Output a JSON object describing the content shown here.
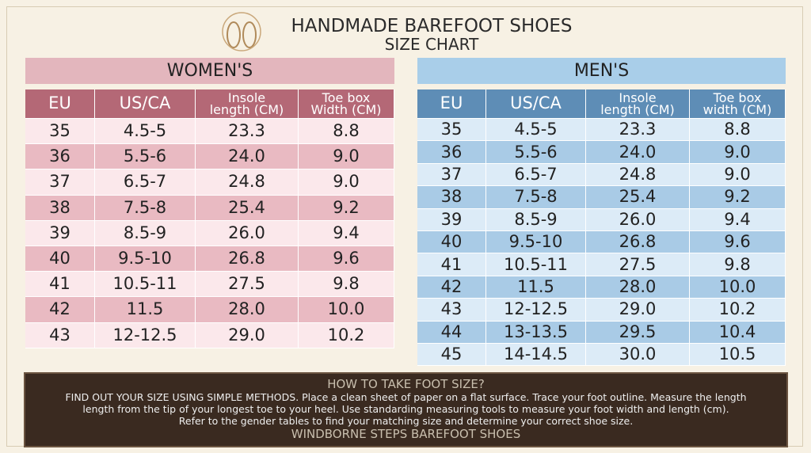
{
  "header": {
    "title": "HANDMADE BAREFOOT SHOES",
    "subtitle": "SIZE CHART"
  },
  "women": {
    "title": "WOMEN'S",
    "columns": [
      [
        "EU"
      ],
      [
        "US/CA"
      ],
      [
        "Insole",
        "length (CM)"
      ],
      [
        "Toe box",
        "Width (CM)"
      ]
    ],
    "rows": [
      [
        "35",
        "4.5-5",
        "23.3",
        "8.8"
      ],
      [
        "36",
        "5.5-6",
        "24.0",
        "9.0"
      ],
      [
        "37",
        "6.5-7",
        "24.8",
        "9.0"
      ],
      [
        "38",
        "7.5-8",
        "25.4",
        "9.2"
      ],
      [
        "39",
        "8.5-9",
        "26.0",
        "9.4"
      ],
      [
        "40",
        "9.5-10",
        "26.8",
        "9.6"
      ],
      [
        "41",
        "10.5-11",
        "27.5",
        "9.8"
      ],
      [
        "42",
        "11.5",
        "28.0",
        "10.0"
      ],
      [
        "43",
        "12-12.5",
        "29.0",
        "10.2"
      ]
    ]
  },
  "men": {
    "title": "MEN'S",
    "columns": [
      [
        "EU"
      ],
      [
        "US/CA"
      ],
      [
        "Insole",
        "length (CM)"
      ],
      [
        "Toe box",
        "width (CM)"
      ]
    ],
    "rows": [
      [
        "35",
        "4.5-5",
        "23.3",
        "8.8"
      ],
      [
        "36",
        "5.5-6",
        "24.0",
        "9.0"
      ],
      [
        "37",
        "6.5-7",
        "24.8",
        "9.0"
      ],
      [
        "38",
        "7.5-8",
        "25.4",
        "9.2"
      ],
      [
        "39",
        "8.5-9",
        "26.0",
        "9.4"
      ],
      [
        "40",
        "9.5-10",
        "26.8",
        "9.6"
      ],
      [
        "41",
        "10.5-11",
        "27.5",
        "9.8"
      ],
      [
        "42",
        "11.5",
        "28.0",
        "10.0"
      ],
      [
        "43",
        "12-12.5",
        "29.0",
        "10.2"
      ],
      [
        "44",
        "13-13.5",
        "29.5",
        "10.4"
      ],
      [
        "45",
        "14-14.5",
        "30.0",
        "10.5"
      ]
    ]
  },
  "footer": {
    "heading": "HOW TO TAKE FOOT SIZE?",
    "lines": [
      "FIND OUT YOUR SIZE USING SIMPLE METHODS. Place a clean sheet of paper on a flat surface. Trace your foot outline. Measure the length",
      "length from the tip of your longest toe to your heel. Use standarding measuring tools to measure your foot width and length (cm).",
      "Refer to the gender tables to find your matching size and determine your correct shoe size."
    ],
    "brand": "WINDBORNE STEPS BAREFOOT SHOES"
  }
}
